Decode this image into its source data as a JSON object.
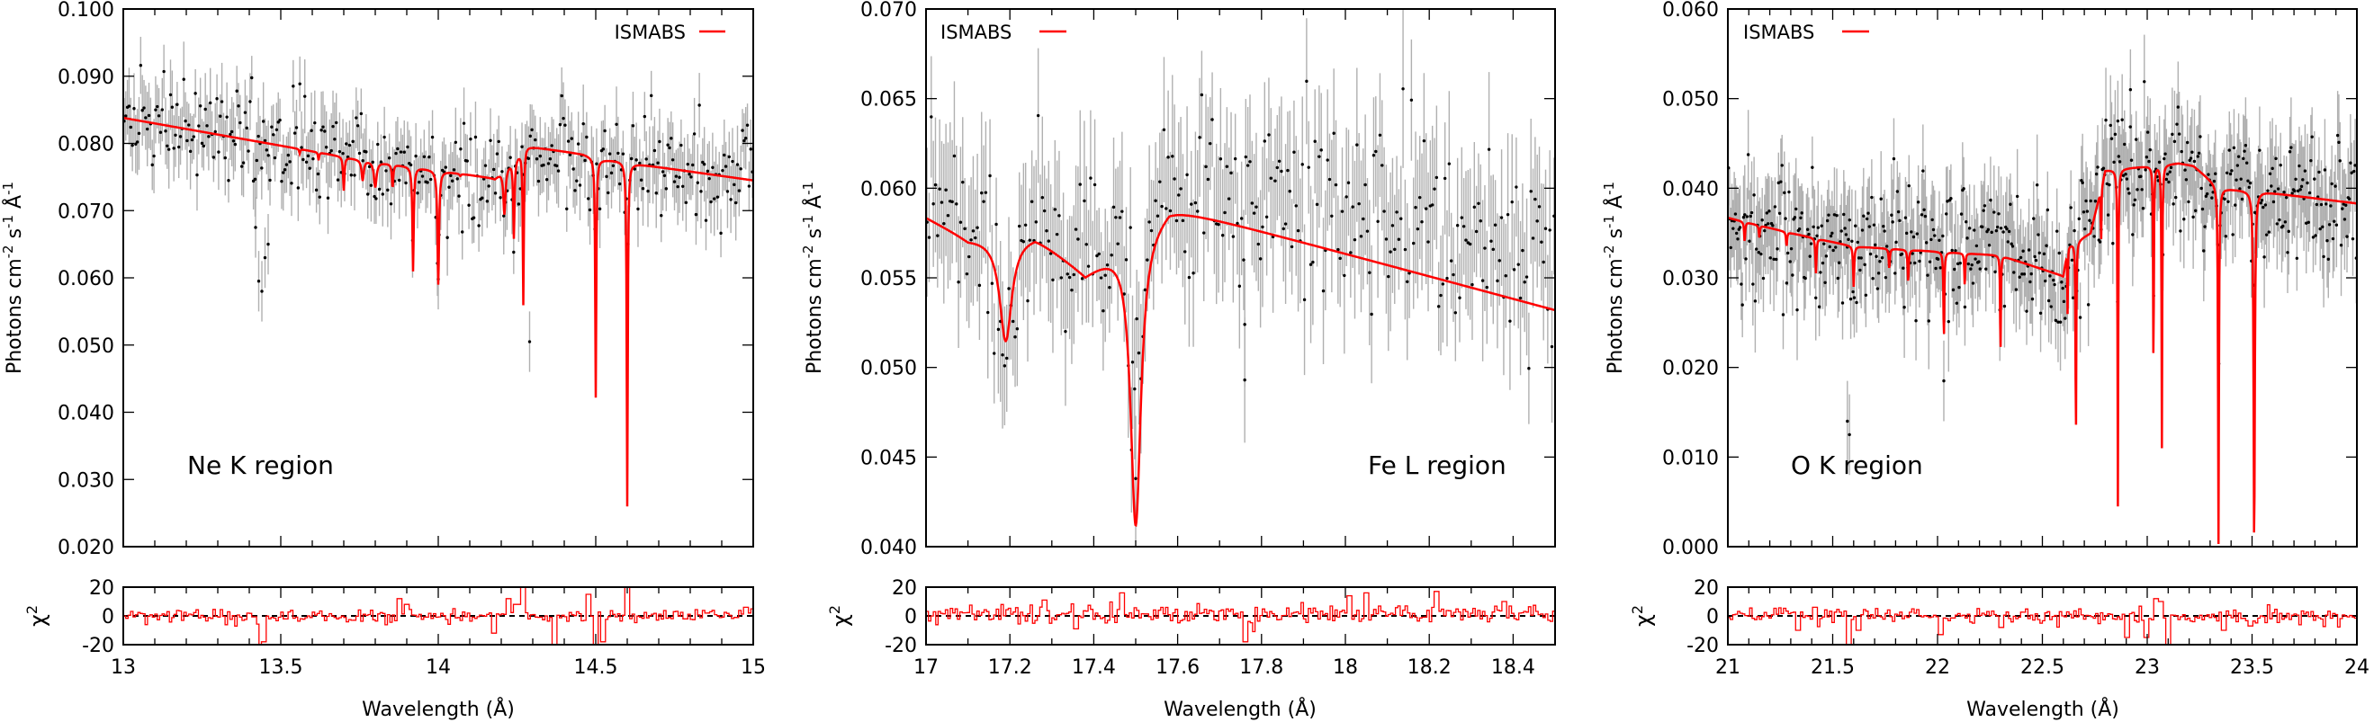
{
  "figure": {
    "colors": {
      "model": "#ff0000",
      "data_point": "#000000",
      "error_bar": "#b0b0b0",
      "residual": "#ff0000",
      "axis": "#000000"
    }
  },
  "chart_data": [
    {
      "type": "line",
      "title": "",
      "annotation": "Ne K region",
      "legend": {
        "entries": [
          "ISMABS"
        ],
        "placement": "top-right"
      },
      "xlabel": "Wavelength (Å)",
      "ylabel": "Photons cm-2 s-1 Å-1",
      "ylabel_parts": {
        "base": "Photons cm",
        "sup1": "-2",
        "mid": " s",
        "sup2": "-1",
        "mid2": " Å",
        "sup3": "-1"
      },
      "xlim": [
        13,
        15
      ],
      "ylim": [
        0.02,
        0.1
      ],
      "xticks": [
        13,
        13.5,
        14,
        14.5,
        15
      ],
      "xtick_labels": [
        "13",
        "13.5",
        "14",
        "14.5",
        "15"
      ],
      "xminor_step": 0.1,
      "yticks": [
        0.02,
        0.03,
        0.04,
        0.05,
        0.06,
        0.07,
        0.08,
        0.09,
        0.1
      ],
      "ytick_labels": [
        "0.020",
        "0.030",
        "0.040",
        "0.050",
        "0.060",
        "0.070",
        "0.080",
        "0.090",
        "0.100"
      ],
      "model": {
        "name": "ISMABS",
        "continuum": [
          [
            13.0,
            0.0838
          ],
          [
            13.75,
            0.0776
          ],
          [
            14.18,
            0.0748
          ],
          [
            14.28,
            0.0796
          ],
          [
            14.46,
            0.0784
          ],
          [
            14.52,
            0.0776
          ],
          [
            14.58,
            0.0774
          ],
          [
            14.62,
            0.077
          ],
          [
            15.0,
            0.0745
          ]
        ],
        "lines": [
          [
            13.56,
            0.0785,
            0.004
          ],
          [
            13.62,
            0.0775,
            0.004
          ],
          [
            13.7,
            0.073,
            0.005
          ],
          [
            13.76,
            0.0745,
            0.008
          ],
          [
            13.8,
            0.0735,
            0.01
          ],
          [
            13.855,
            0.0735,
            0.005
          ],
          [
            13.92,
            0.061,
            0.005
          ],
          [
            14.0,
            0.059,
            0.006
          ],
          [
            14.07,
            0.0752,
            0.006
          ],
          [
            14.21,
            0.0695,
            0.008
          ],
          [
            14.24,
            0.066,
            0.005
          ],
          [
            14.27,
            0.056,
            0.004
          ],
          [
            14.5,
            0.0422,
            0.004
          ],
          [
            14.6,
            0.026,
            0.004
          ]
        ]
      },
      "observed": {
        "n_points": 380,
        "scatter": 0.0035,
        "error": 0.0045,
        "seed": 11,
        "outliers": [
          [
            13.43,
            0.0595
          ],
          [
            13.44,
            0.058
          ],
          [
            13.45,
            0.063
          ],
          [
            13.46,
            0.065
          ],
          [
            13.42,
            0.0675
          ],
          [
            14.29,
            0.0505
          ],
          [
            14.0,
            0.0598
          ]
        ]
      },
      "residual": {
        "ylabel": "χ2",
        "ylabel_base": "χ",
        "ylabel_sup": "2",
        "ylim": [
          -20,
          20
        ],
        "yticks": [
          -20,
          0,
          20
        ],
        "ytick_labels": [
          "-20",
          "0",
          "20"
        ],
        "spikes": [
          [
            13.44,
            -20
          ],
          [
            13.45,
            -18
          ],
          [
            13.88,
            12
          ],
          [
            13.9,
            8
          ],
          [
            14.18,
            -12
          ],
          [
            14.22,
            12
          ],
          [
            14.25,
            8
          ],
          [
            14.27,
            20
          ],
          [
            14.37,
            -20
          ],
          [
            14.48,
            15
          ],
          [
            14.5,
            -20
          ],
          [
            14.52,
            -18
          ],
          [
            14.6,
            20
          ],
          [
            14.98,
            6
          ]
        ],
        "scatter": 2.5,
        "seed": 21
      }
    },
    {
      "type": "line",
      "title": "",
      "annotation": "Fe L region",
      "legend": {
        "entries": [
          "ISMABS"
        ],
        "placement": "top-left"
      },
      "xlabel": "Wavelength (Å)",
      "ylabel": "Photons cm-2 s-1 Å-1",
      "ylabel_parts": {
        "base": "Photons cm",
        "sup1": "-2",
        "mid": " s",
        "sup2": "-1",
        "mid2": " Å",
        "sup3": "-1"
      },
      "xlim": [
        17,
        18.5
      ],
      "ylim": [
        0.04,
        0.07
      ],
      "xticks": [
        17,
        17.2,
        17.4,
        17.6,
        17.8,
        18,
        18.2,
        18.4
      ],
      "xtick_labels": [
        "17",
        "17.2",
        "17.4",
        "17.6",
        "17.8",
        "18",
        "18.2",
        "18.4"
      ],
      "xminor_step": 0.1,
      "yticks": [
        0.04,
        0.045,
        0.05,
        0.055,
        0.06,
        0.065,
        0.07
      ],
      "ytick_labels": [
        "0.040",
        "0.045",
        "0.050",
        "0.055",
        "0.060",
        "0.065",
        "0.070"
      ],
      "model": {
        "name": "ISMABS",
        "continuum": [
          [
            17.0,
            0.0584
          ],
          [
            17.1,
            0.0572
          ],
          [
            17.26,
            0.0574
          ],
          [
            17.38,
            0.0553
          ],
          [
            17.58,
            0.059
          ],
          [
            18.5,
            0.0532
          ]
        ],
        "lines": [
          [
            17.19,
            0.0515,
            0.035
          ],
          [
            17.5,
            0.0412,
            0.03
          ]
        ]
      },
      "observed": {
        "n_points": 300,
        "scatter": 0.0025,
        "error": 0.0035,
        "seed": 5,
        "offset": 0.0025,
        "outliers": [
          [
            17.76,
            0.0493
          ],
          [
            17.76,
            0.0524
          ],
          [
            17.5,
            0.0438
          ],
          [
            17.49,
            0.0454
          ]
        ]
      },
      "residual": {
        "ylabel": "χ2",
        "ylabel_base": "χ",
        "ylabel_sup": "2",
        "ylim": [
          -20,
          20
        ],
        "yticks": [
          -20,
          0,
          20
        ],
        "ytick_labels": [
          "-20",
          "0",
          "20"
        ],
        "spikes": [
          [
            17.28,
            11
          ],
          [
            17.36,
            -9
          ],
          [
            17.47,
            16
          ],
          [
            17.76,
            -18
          ],
          [
            18.01,
            14
          ],
          [
            18.05,
            16
          ],
          [
            18.22,
            17
          ],
          [
            18.38,
            10
          ]
        ],
        "scatter": 3.0,
        "bias": 3.0,
        "seed": 7
      }
    },
    {
      "type": "line",
      "title": "",
      "annotation": "O K region",
      "legend": {
        "entries": [
          "ISMABS"
        ],
        "placement": "top-left"
      },
      "xlabel": "Wavelength (Å)",
      "ylabel": "Photons cm-2 s-1 Å-1",
      "ylabel_parts": {
        "base": "Photons cm",
        "sup1": "-2",
        "mid": " s",
        "sup2": "-1",
        "mid2": " Å",
        "sup3": "-1"
      },
      "xlim": [
        21,
        24
      ],
      "ylim": [
        0.0,
        0.06
      ],
      "xticks": [
        21,
        21.5,
        22,
        22.5,
        23,
        23.5,
        24
      ],
      "xtick_labels": [
        "21",
        "21.5",
        "22",
        "22.5",
        "23",
        "23.5",
        "24"
      ],
      "xminor_step": 0.1,
      "yticks": [
        0.0,
        0.01,
        0.02,
        0.03,
        0.04,
        0.05,
        0.06
      ],
      "ytick_labels": [
        "0.000",
        "0.010",
        "0.020",
        "0.030",
        "0.040",
        "0.050",
        "0.060"
      ],
      "model": {
        "name": "ISMABS",
        "continuum": [
          [
            21.0,
            0.0367
          ],
          [
            21.3,
            0.035
          ],
          [
            21.6,
            0.0335
          ],
          [
            22.3,
            0.0325
          ],
          [
            22.6,
            0.0302
          ],
          [
            22.62,
            0.0335
          ],
          [
            22.73,
            0.035
          ],
          [
            22.8,
            0.042
          ],
          [
            23.15,
            0.0428
          ],
          [
            23.22,
            0.0425
          ],
          [
            23.35,
            0.04
          ],
          [
            23.55,
            0.0396
          ],
          [
            24.0,
            0.0383
          ]
        ],
        "lines": [
          [
            21.08,
            0.034,
            0.006
          ],
          [
            21.15,
            0.0345,
            0.006
          ],
          [
            21.28,
            0.0335,
            0.006
          ],
          [
            21.42,
            0.0305,
            0.006
          ],
          [
            21.6,
            0.029,
            0.006
          ],
          [
            21.77,
            0.031,
            0.006
          ],
          [
            21.86,
            0.0295,
            0.006
          ],
          [
            22.03,
            0.023,
            0.005
          ],
          [
            22.13,
            0.029,
            0.005
          ],
          [
            22.3,
            0.021,
            0.004
          ],
          [
            22.62,
            0.026,
            0.003
          ],
          [
            22.66,
            0.011,
            0.004
          ],
          [
            22.78,
            0.033,
            0.003
          ],
          [
            22.86,
            0.0045,
            0.004
          ],
          [
            23.03,
            0.019,
            0.004
          ],
          [
            23.07,
            0.011,
            0.004
          ],
          [
            23.34,
            0.0003,
            0.005
          ],
          [
            23.51,
            0.0,
            0.007
          ]
        ]
      },
      "observed": {
        "n_points": 540,
        "scatter": 0.0035,
        "error": 0.0045,
        "seed": 3,
        "outliers": [
          [
            21.58,
            0.0125
          ],
          [
            21.57,
            0.014
          ],
          [
            22.03,
            0.0185
          ],
          [
            22.86,
            0.0475
          ],
          [
            22.92,
            0.051
          ]
        ]
      },
      "residual": {
        "ylabel": "χ2",
        "ylabel_base": "χ",
        "ylabel_sup": "2",
        "ylim": [
          -20,
          20
        ],
        "yticks": [
          -20,
          0,
          20
        ],
        "ytick_labels": [
          "-20",
          "0",
          "20"
        ],
        "spikes": [
          [
            21.34,
            -10
          ],
          [
            21.42,
            6
          ],
          [
            21.58,
            -20
          ],
          [
            21.62,
            -10
          ],
          [
            22.01,
            -13
          ],
          [
            22.3,
            -8
          ],
          [
            22.9,
            -15
          ],
          [
            23.0,
            -15
          ],
          [
            23.04,
            12
          ],
          [
            23.07,
            10
          ],
          [
            23.1,
            -20
          ],
          [
            23.36,
            -10
          ],
          [
            23.49,
            -7
          ]
        ],
        "scatter": 2.5,
        "seed": 9
      }
    }
  ]
}
